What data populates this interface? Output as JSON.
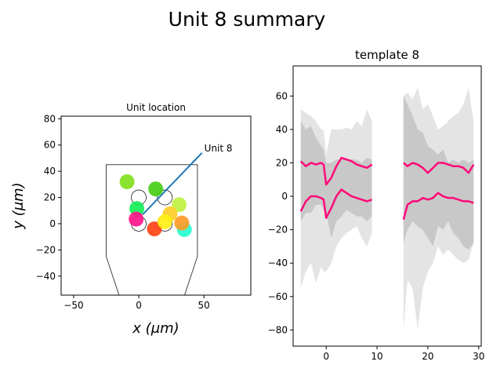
{
  "figure_title": "Unit 8 summary",
  "chart_data": [
    {
      "type": "scatter",
      "title": "Unit location",
      "xlabel": "x (μm)",
      "ylabel": "y (μm)",
      "xlim": [
        -59.6,
        86
      ],
      "ylim": [
        -54.5,
        82
      ],
      "xticks": [
        -50,
        0,
        50
      ],
      "yticks": [
        -40,
        -20,
        0,
        20,
        40,
        60,
        80
      ],
      "grid": false,
      "probe_outline": [
        [
          -15,
          -55
        ],
        [
          -25,
          -25
        ],
        [
          -25,
          45
        ],
        [
          45,
          45
        ],
        [
          45,
          -25
        ],
        [
          35,
          -55
        ]
      ],
      "contacts": [
        [
          0,
          20
        ],
        [
          20,
          20
        ],
        [
          0,
          0
        ],
        [
          20,
          0
        ]
      ],
      "units": [
        {
          "x": -9,
          "y": 32,
          "color": "#7ee01a"
        },
        {
          "x": 13,
          "y": 26.5,
          "color": "#44cc11"
        },
        {
          "x": 31,
          "y": 14.5,
          "color": "#bff23f"
        },
        {
          "x": -1.5,
          "y": 11.5,
          "color": "#11ee55"
        },
        {
          "x": 24,
          "y": 7.5,
          "color": "#ffcc22"
        },
        {
          "x": 12,
          "y": -4,
          "color": "#ff3f11"
        },
        {
          "x": 35,
          "y": -4.5,
          "color": "#22ffcc"
        },
        {
          "x": 33,
          "y": 0.5,
          "color": "#ff9922"
        },
        {
          "x": 20,
          "y": 1.5,
          "color": "#ffee11"
        },
        {
          "x": -2,
          "y": 3.5,
          "color": "#ff1188"
        }
      ],
      "annotation": {
        "text": "Unit 8",
        "from": [
          3,
          7
        ],
        "to": [
          48.5,
          54
        ],
        "color": "#1f77b4"
      }
    },
    {
      "type": "line",
      "title": "template 8",
      "xlim": [
        -6.5,
        30.5
      ],
      "ylim": [
        -89.7,
        78
      ],
      "xticks": [
        0,
        10,
        20,
        30
      ],
      "yticks": [
        -80,
        -60,
        -40,
        -20,
        0,
        20,
        40,
        60
      ],
      "grid": false,
      "line_color": "#ff0a78",
      "segments": [
        {
          "x": [
            -5,
            -4,
            -3,
            -2,
            -1,
            -0.5,
            0,
            1,
            2,
            3,
            4,
            5,
            6,
            7,
            8,
            9
          ],
          "channels": [
            {
              "y": [
                21,
                18,
                20,
                19,
                20,
                19,
                7,
                11,
                18,
                23,
                22,
                21,
                19,
                18,
                17,
                19
              ],
              "band_inner": {
                "hi": [
                  45,
                  40,
                  42,
                  35,
                  30,
                  28,
                  20,
                  20,
                  22,
                  22,
                  22,
                  22,
                  22,
                  20,
                  23,
                  22
                ],
                "lo": [
                  -15,
                  -10,
                  -10,
                  -5,
                  -5,
                  -8,
                  -10,
                  -25,
                  -15,
                  -12,
                  -8,
                  -10,
                  -12,
                  -12,
                  -15,
                  -12
                ]
              },
              "band_outer": {
                "hi": [
                  52,
                  50,
                  48,
                  45,
                  40,
                  40,
                  25,
                  40,
                  40,
                  40,
                  41,
                  40,
                  45,
                  42,
                  52,
                  45
                ],
                "lo": [
                  -55,
                  -45,
                  -40,
                  -52,
                  -42,
                  -45,
                  -45,
                  -40,
                  -30,
                  -25,
                  -22,
                  -20,
                  -18,
                  -25,
                  -30,
                  -22
                ]
              }
            },
            {
              "y": [
                -9,
                -3,
                0,
                0,
                -1,
                -2,
                -13,
                -7,
                0,
                4,
                2,
                0,
                -1,
                -2,
                -3,
                -2
              ]
            }
          ]
        },
        {
          "x": [
            15.2,
            16,
            17,
            18,
            19,
            20,
            21,
            22,
            23,
            24,
            25,
            26,
            27,
            28,
            29
          ],
          "channels": [
            {
              "y": [
                20,
                18,
                20,
                19,
                17,
                14,
                17,
                20,
                20,
                19,
                18,
                18,
                17,
                14,
                19
              ],
              "band_inner": {
                "hi": [
                  60,
                  55,
                  48,
                  40,
                  38,
                  30,
                  28,
                  25,
                  28,
                  20,
                  22,
                  20,
                  22,
                  20,
                  22
                ],
                "lo": [
                  -28,
                  -20,
                  -15,
                  -18,
                  -20,
                  -25,
                  -30,
                  -18,
                  -20,
                  -15,
                  -22,
                  -25,
                  -30,
                  -32,
                  -28
                ]
              },
              "band_outer": {
                "hi": [
                  60,
                  62,
                  58,
                  65,
                  52,
                  55,
                  48,
                  40,
                  42,
                  45,
                  48,
                  50,
                  55,
                  65,
                  45
                ],
                "lo": [
                  -80,
                  -50,
                  -55,
                  -80,
                  -55,
                  -45,
                  -40,
                  -30,
                  -35,
                  -32,
                  -35,
                  -38,
                  -40,
                  -38,
                  -28
                ]
              }
            },
            {
              "y": [
                -14,
                -5,
                -3,
                -3,
                -1,
                -2,
                -1,
                2,
                0,
                -1,
                -1,
                -2,
                -3,
                -3,
                -4
              ]
            }
          ]
        }
      ]
    }
  ]
}
